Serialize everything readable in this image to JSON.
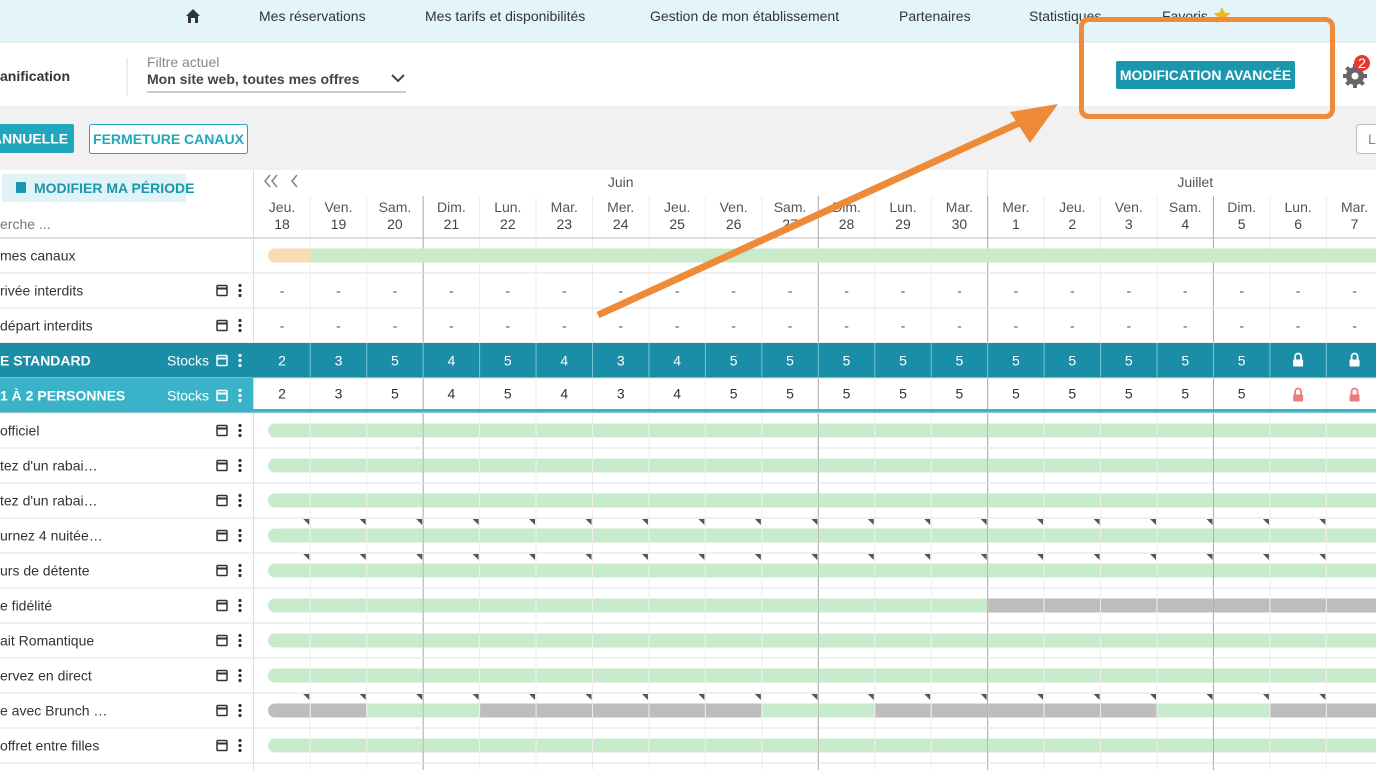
{
  "nav": {
    "items": [
      "Mes réservations",
      "Mes tarifs et disponibilités",
      "Gestion de mon établissement",
      "Partenaires",
      "Statistiques",
      "Favoris"
    ]
  },
  "header": {
    "title": "anification",
    "filter_label": "Filtre actuel",
    "filter_value": "Mon site web, toutes mes offres",
    "advanced_button": "MODIFICATION AVANCÉE",
    "notification_count": 2
  },
  "toolbar": {
    "buttons": [
      "ANNUELLE",
      "FERMETURE CANAUX"
    ],
    "right_button": "L"
  },
  "grid": {
    "period_button": "MODIFIER MA PÉRIODE",
    "search_placeholder": "erche ...",
    "months": [
      "Juin",
      "Juillet"
    ],
    "days": [
      {
        "weekday": "Jeu.",
        "day": 18
      },
      {
        "weekday": "Ven.",
        "day": 19
      },
      {
        "weekday": "Sam.",
        "day": 20
      },
      {
        "weekday": "Dim.",
        "day": 21
      },
      {
        "weekday": "Lun.",
        "day": 22
      },
      {
        "weekday": "Mar.",
        "day": 23
      },
      {
        "weekday": "Mer.",
        "day": 24
      },
      {
        "weekday": "Jeu.",
        "day": 25
      },
      {
        "weekday": "Ven.",
        "day": 26
      },
      {
        "weekday": "Sam.",
        "day": 27
      },
      {
        "weekday": "Dim.",
        "day": 28
      },
      {
        "weekday": "Lun.",
        "day": 29
      },
      {
        "weekday": "Mar.",
        "day": 30
      },
      {
        "weekday": "Mer.",
        "day": 1
      },
      {
        "weekday": "Jeu.",
        "day": 2
      },
      {
        "weekday": "Ven.",
        "day": 3
      },
      {
        "weekday": "Sam.",
        "day": 4
      },
      {
        "weekday": "Dim.",
        "day": 5
      },
      {
        "weekday": "Lun.",
        "day": 6
      },
      {
        "weekday": "Mar.",
        "day": 7
      }
    ],
    "rows": [
      {
        "label": "mes canaux"
      },
      {
        "label": "rivée interdits",
        "cells": [
          "-",
          "-",
          "-",
          "-",
          "-",
          "-",
          "-",
          "-",
          "-",
          "-",
          "-",
          "-",
          "-",
          "-",
          "-",
          "-",
          "-",
          "-",
          "-",
          "-"
        ]
      },
      {
        "label": "départ interdits",
        "cells": [
          "-",
          "-",
          "-",
          "-",
          "-",
          "-",
          "-",
          "-",
          "-",
          "-",
          "-",
          "-",
          "-",
          "-",
          "-",
          "-",
          "-",
          "-",
          "-",
          "-"
        ]
      },
      {
        "label": "E STANDARD",
        "stock_label": "Stocks",
        "values": [
          2,
          3,
          5,
          4,
          5,
          4,
          3,
          4,
          5,
          5,
          5,
          5,
          5,
          5,
          5,
          5,
          5,
          5,
          null,
          null
        ]
      },
      {
        "label": "1 À 2 PERSONNES",
        "stock_label": "Stocks",
        "values": [
          2,
          3,
          5,
          4,
          5,
          4,
          3,
          4,
          5,
          5,
          5,
          5,
          5,
          5,
          5,
          5,
          5,
          5,
          null,
          null
        ]
      },
      {
        "label": "officiel"
      },
      {
        "label": "tez d'un rabai…"
      },
      {
        "label": "tez d'un rabai…"
      },
      {
        "label": "urnez 4 nuitée…"
      },
      {
        "label": "urs de détente"
      },
      {
        "label": "e fidélité"
      },
      {
        "label": "ait Romantique"
      },
      {
        "label": "ervez en direct"
      },
      {
        "label": "e avec Brunch …"
      },
      {
        "label": "offret entre filles"
      }
    ]
  }
}
